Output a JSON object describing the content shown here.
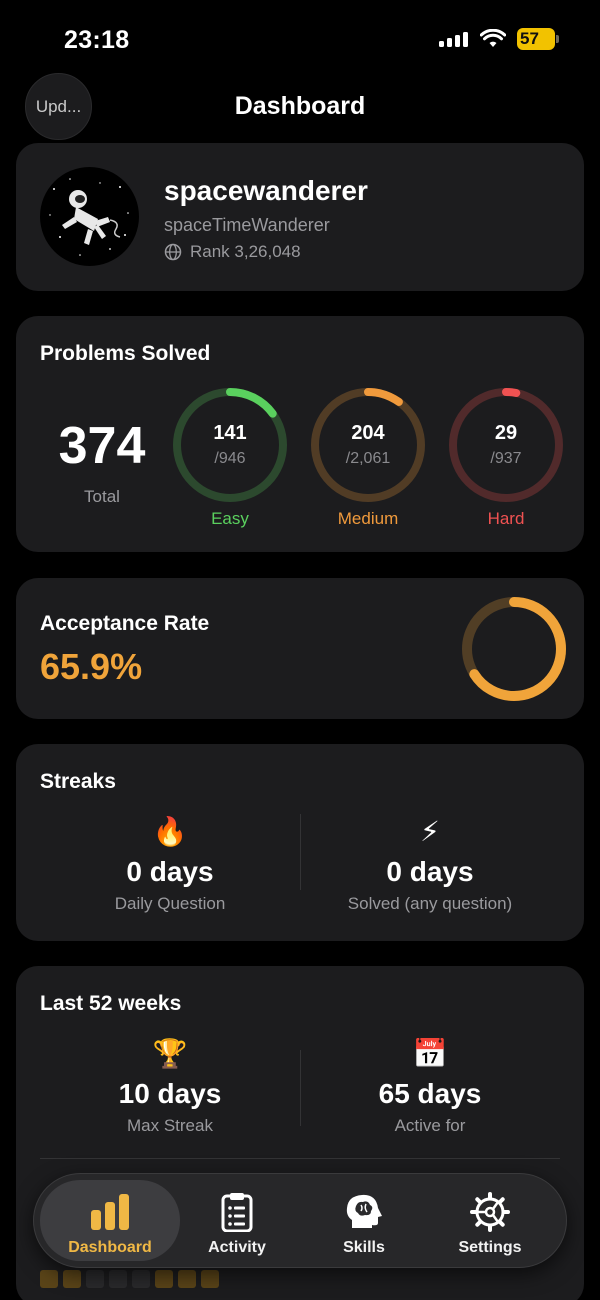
{
  "status_bar": {
    "time": "23:18",
    "battery": "57"
  },
  "header": {
    "title": "Dashboard",
    "update_label": "Upd..."
  },
  "profile": {
    "username": "spacewanderer",
    "handle": "spaceTimeWanderer",
    "rank": "Rank 3,26,048"
  },
  "problems": {
    "title": "Problems Solved",
    "total": "374",
    "total_label": "Total",
    "easy": {
      "solved": "141",
      "total": "/946",
      "label": "Easy",
      "fraction": 0.149,
      "color": "#5ad05e"
    },
    "medium": {
      "solved": "204",
      "total": "/2,061",
      "label": "Medium",
      "fraction": 0.099,
      "color": "#f09a3c"
    },
    "hard": {
      "solved": "29",
      "total": "/937",
      "label": "Hard",
      "fraction": 0.031,
      "color": "#f05252"
    }
  },
  "acceptance": {
    "title": "Acceptance Rate",
    "value": "65.9%",
    "fraction": 0.659,
    "color": "#f0a43a"
  },
  "streaks": {
    "title": "Streaks",
    "daily": {
      "icon": "🔥",
      "value": "0 days",
      "label": "Daily Question"
    },
    "solved": {
      "icon": "⚡",
      "value": "0 days",
      "label": "Solved (any question)"
    }
  },
  "last52": {
    "title": "Last 52 weeks",
    "max_streak": {
      "icon": "🏆",
      "value": "10 days",
      "label": "Max Streak"
    },
    "active": {
      "icon": "📅",
      "value": "65 days",
      "label": "Active for"
    }
  },
  "tabs": [
    {
      "label": "Dashboard",
      "icon": "bar-chart-icon",
      "active": true
    },
    {
      "label": "Activity",
      "icon": "clipboard-list-icon",
      "active": false
    },
    {
      "label": "Skills",
      "icon": "brain-head-icon",
      "active": false
    },
    {
      "label": "Settings",
      "icon": "gear-icon",
      "active": false
    }
  ],
  "colors": {
    "accent": "#f0b845",
    "card": "#1c1c1e",
    "background": "#000000"
  }
}
